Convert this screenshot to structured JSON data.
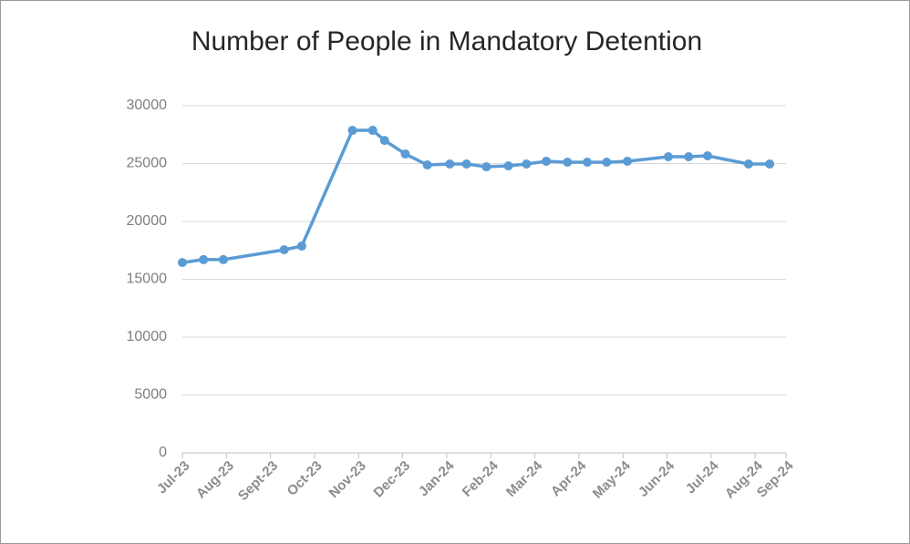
{
  "chart_data": {
    "type": "line",
    "title": "Number of People in Mandatory Detention",
    "x": [
      0,
      0.48,
      0.93,
      2.31,
      2.71,
      3.86,
      4.32,
      4.59,
      5.06,
      5.56,
      6.07,
      6.45,
      6.9,
      7.4,
      7.81,
      8.26,
      8.74,
      9.19,
      9.63,
      10.1,
      11.03,
      11.49,
      11.92,
      12.85,
      13.33
    ],
    "series": [
      {
        "name": "Number of People in Mandatory Detention",
        "color": "#5b9bd5",
        "values": [
          16450,
          16700,
          16700,
          17550,
          17870,
          27870,
          27870,
          27000,
          25830,
          24880,
          24960,
          24960,
          24720,
          24800,
          24960,
          25200,
          25120,
          25120,
          25120,
          25200,
          25590,
          25590,
          25670,
          24960,
          24960
        ]
      }
    ],
    "xlim": [
      0,
      13.7
    ],
    "xticks": [
      {
        "value": 0,
        "label": "Jul-23"
      },
      {
        "value": 1,
        "label": "Aug-23"
      },
      {
        "value": 2,
        "label": "Sept-23"
      },
      {
        "value": 3,
        "label": "Oct-23"
      },
      {
        "value": 4,
        "label": "Nov-23"
      },
      {
        "value": 5,
        "label": "Dec-23"
      },
      {
        "value": 6,
        "label": "Jan-24"
      },
      {
        "value": 7,
        "label": "Feb-24"
      },
      {
        "value": 8,
        "label": "Mar-24"
      },
      {
        "value": 9,
        "label": "Apr-24"
      },
      {
        "value": 10,
        "label": "May-24"
      },
      {
        "value": 11,
        "label": "Jun-24"
      },
      {
        "value": 12,
        "label": "Jul-24"
      },
      {
        "value": 13,
        "label": "Aug-24"
      },
      {
        "value": 13.7,
        "label": "Sep-24"
      }
    ],
    "ylim": [
      0,
      30000
    ],
    "yticks": [
      0,
      5000,
      10000,
      15000,
      20000,
      25000,
      30000
    ],
    "grid": true
  }
}
